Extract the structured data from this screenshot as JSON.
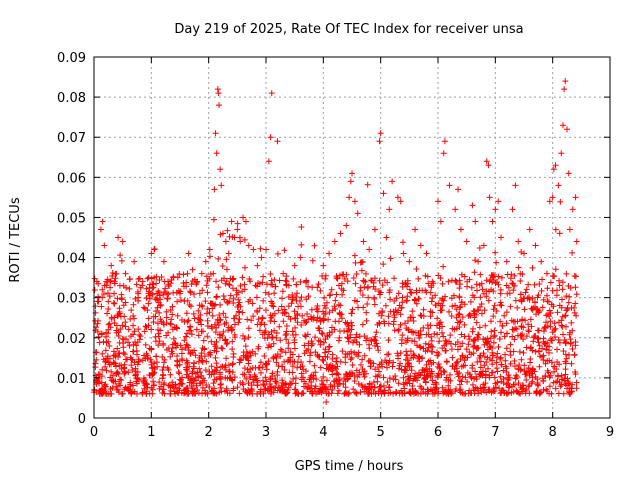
{
  "chart_data": {
    "type": "scatter",
    "title": "Day 219 of 2025, Rate Of TEC Index for receiver unsa",
    "xlabel": "GPS time / hours",
    "ylabel": "ROTI / TECUs",
    "xlim": [
      0,
      9
    ],
    "ylim": [
      0,
      0.09
    ],
    "x_ticks": [
      "0",
      "1",
      "2",
      "3",
      "4",
      "5",
      "6",
      "7",
      "8",
      "9"
    ],
    "y_ticks": [
      "0",
      "0.01",
      "0.02",
      "0.03",
      "0.04",
      "0.05",
      "0.06",
      "0.07",
      "0.08",
      "0.09"
    ],
    "grid": true,
    "legend": "none",
    "marker": "plus",
    "color": "#ff0000",
    "series": [
      {
        "points": [
          [
            0.05,
            0.034
          ],
          [
            0.08,
            0.029
          ],
          [
            0.12,
            0.047
          ],
          [
            0.15,
            0.049
          ],
          [
            0.18,
            0.043
          ],
          [
            0.22,
            0.006
          ],
          [
            0.25,
            0.022
          ],
          [
            0.3,
            0.038
          ],
          [
            0.35,
            0.031
          ],
          [
            0.42,
            0.045
          ],
          [
            0.5,
            0.044
          ],
          [
            0.55,
            0.036
          ],
          [
            0.62,
            0.018
          ],
          [
            0.7,
            0.039
          ],
          [
            0.75,
            0.006
          ],
          [
            0.85,
            0.034
          ],
          [
            0.95,
            0.031
          ],
          [
            1.0,
            0.041
          ],
          [
            1.05,
            0.042
          ],
          [
            1.1,
            0.031
          ],
          [
            1.18,
            0.024
          ],
          [
            1.22,
            0.039
          ],
          [
            1.3,
            0.012
          ],
          [
            1.38,
            0.035
          ],
          [
            1.45,
            0.029
          ],
          [
            1.5,
            0.031
          ],
          [
            1.58,
            0.024
          ],
          [
            1.65,
            0.041
          ],
          [
            1.72,
            0.037
          ],
          [
            1.8,
            0.034
          ],
          [
            1.88,
            0.036
          ],
          [
            1.95,
            0.039
          ],
          [
            2.02,
            0.042
          ],
          [
            2.08,
            0.036
          ],
          [
            2.1,
            0.057
          ],
          [
            2.12,
            0.071
          ],
          [
            2.14,
            0.066
          ],
          [
            2.16,
            0.082
          ],
          [
            2.17,
            0.081
          ],
          [
            2.18,
            0.078
          ],
          [
            2.2,
            0.062
          ],
          [
            2.22,
            0.058
          ],
          [
            2.25,
            0.046
          ],
          [
            2.3,
            0.044
          ],
          [
            2.35,
            0.041
          ],
          [
            2.4,
            0.049
          ],
          [
            2.45,
            0.045
          ],
          [
            2.5,
            0.047
          ],
          [
            2.55,
            0.044
          ],
          [
            2.6,
            0.05
          ],
          [
            2.65,
            0.049
          ],
          [
            2.7,
            0.043
          ],
          [
            2.78,
            0.042
          ],
          [
            2.85,
            0.038
          ],
          [
            2.92,
            0.04
          ],
          [
            3.0,
            0.042
          ],
          [
            3.05,
            0.064
          ],
          [
            3.08,
            0.07
          ],
          [
            3.1,
            0.081
          ],
          [
            3.2,
            0.069
          ],
          [
            3.3,
            0.036
          ],
          [
            3.4,
            0.033
          ],
          [
            3.5,
            0.038
          ],
          [
            3.6,
            0.04
          ],
          [
            3.7,
            0.034
          ],
          [
            3.8,
            0.027
          ],
          [
            3.9,
            0.025
          ],
          [
            4.0,
            0.038
          ],
          [
            4.05,
            0.004
          ],
          [
            4.1,
            0.041
          ],
          [
            4.2,
            0.044
          ],
          [
            4.3,
            0.046
          ],
          [
            4.4,
            0.048
          ],
          [
            4.45,
            0.055
          ],
          [
            4.48,
            0.059
          ],
          [
            4.5,
            0.061
          ],
          [
            4.55,
            0.054
          ],
          [
            4.6,
            0.051
          ],
          [
            4.7,
            0.044
          ],
          [
            4.8,
            0.042
          ],
          [
            4.9,
            0.047
          ],
          [
            4.98,
            0.069
          ],
          [
            5.0,
            0.071
          ],
          [
            5.05,
            0.056
          ],
          [
            5.1,
            0.045
          ],
          [
            5.15,
            0.052
          ],
          [
            5.2,
            0.059
          ],
          [
            5.3,
            0.055
          ],
          [
            5.35,
            0.054
          ],
          [
            5.4,
            0.041
          ],
          [
            5.5,
            0.039
          ],
          [
            5.6,
            0.047
          ],
          [
            5.7,
            0.043
          ],
          [
            5.8,
            0.041
          ],
          [
            5.9,
            0.034
          ],
          [
            6.0,
            0.054
          ],
          [
            6.05,
            0.049
          ],
          [
            6.1,
            0.066
          ],
          [
            6.12,
            0.069
          ],
          [
            6.2,
            0.058
          ],
          [
            6.3,
            0.052
          ],
          [
            6.35,
            0.057
          ],
          [
            6.4,
            0.047
          ],
          [
            6.5,
            0.044
          ],
          [
            6.6,
            0.053
          ],
          [
            6.65,
            0.049
          ],
          [
            6.7,
            0.039
          ],
          [
            6.8,
            0.043
          ],
          [
            6.85,
            0.064
          ],
          [
            6.88,
            0.063
          ],
          [
            6.9,
            0.055
          ],
          [
            6.95,
            0.049
          ],
          [
            7.0,
            0.052
          ],
          [
            7.05,
            0.054
          ],
          [
            7.1,
            0.045
          ],
          [
            7.2,
            0.039
          ],
          [
            7.3,
            0.052
          ],
          [
            7.35,
            0.058
          ],
          [
            7.4,
            0.044
          ],
          [
            7.5,
            0.041
          ],
          [
            7.6,
            0.047
          ],
          [
            7.7,
            0.043
          ],
          [
            7.8,
            0.039
          ],
          [
            7.9,
            0.036
          ],
          [
            7.95,
            0.054
          ],
          [
            8.0,
            0.055
          ],
          [
            8.02,
            0.062
          ],
          [
            8.05,
            0.063
          ],
          [
            8.1,
            0.058
          ],
          [
            8.15,
            0.066
          ],
          [
            8.18,
            0.073
          ],
          [
            8.2,
            0.082
          ],
          [
            8.22,
            0.084
          ],
          [
            8.25,
            0.072
          ],
          [
            8.28,
            0.061
          ],
          [
            8.3,
            0.047
          ],
          [
            8.35,
            0.052
          ],
          [
            8.4,
            0.055
          ],
          [
            8.42,
            0.044
          ]
        ]
      }
    ]
  }
}
